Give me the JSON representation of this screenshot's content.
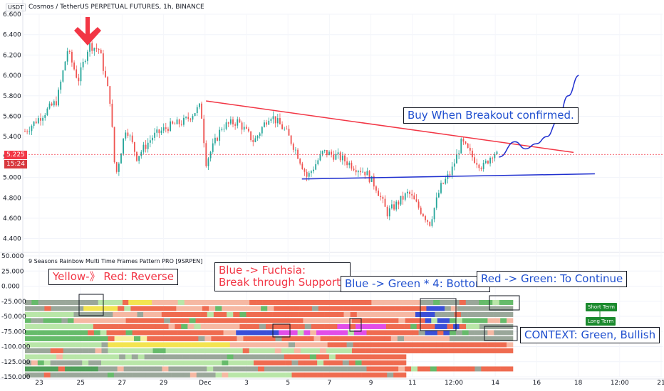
{
  "header": {
    "currency": "USDT",
    "title": "Cosmos / TetherUS PERPETUAL FUTURES, 1h, BINANCE"
  },
  "indicator_title": "9 Seasons Rainbow Multi Time Frames Pattern PRO [9SRPEN]",
  "last_price": "5.225",
  "countdown": "15:24",
  "notes": {
    "reverse": "Yellow-》 Red:   Reverse",
    "break": "Blue -> Fuchsia:\nBreak through Supports",
    "bottom": "Blue -> Green * 4: Bottom",
    "continue": "Red -> Green: To Continue",
    "buy": "Buy When Breakout confirmed.",
    "context": "CONTEXT: Green, Bullish"
  },
  "badges": {
    "short": "Short Term",
    "long": "Long Term"
  },
  "colors": {
    "up": "#26a69a",
    "down": "#ef5350",
    "resistance": "#f23645",
    "support": "#1f2fcf",
    "projection": "#1f2fcf",
    "arrow": "#f23645"
  },
  "chart_data": [
    {
      "type": "candlestick",
      "title": "Cosmos / TetherUS PERPETUAL FUTURES, 1h, BINANCE",
      "ylim": [
        4.3,
        6.6
      ],
      "y_ticks": [
        "6.600",
        "6.400",
        "6.200",
        "6.000",
        "5.800",
        "5.600",
        "5.400",
        "5.200",
        "5.000",
        "4.800",
        "4.600",
        "4.400"
      ],
      "x_ticks": [
        "23",
        "25",
        "27",
        "29",
        "Dec",
        "3",
        "5",
        "7",
        "9",
        "11",
        "12:00",
        "14",
        "16",
        "18",
        "12:00",
        "21"
      ],
      "price_path": [
        [
          0,
          5.45
        ],
        [
          3,
          5.6
        ],
        [
          6,
          5.75
        ],
        [
          8,
          6.25
        ],
        [
          10,
          5.95
        ],
        [
          12,
          6.3
        ],
        [
          14,
          6.25
        ],
        [
          16,
          5.75
        ],
        [
          17,
          5.0
        ],
        [
          19,
          5.5
        ],
        [
          21,
          5.2
        ],
        [
          24,
          5.4
        ],
        [
          27,
          5.5
        ],
        [
          30,
          5.55
        ],
        [
          33,
          5.7
        ],
        [
          34,
          5.15
        ],
        [
          37,
          5.5
        ],
        [
          40,
          5.55
        ],
        [
          43,
          5.35
        ],
        [
          46,
          5.62
        ],
        [
          49,
          5.45
        ],
        [
          51,
          5.25
        ],
        [
          53,
          5.0
        ],
        [
          56,
          5.25
        ],
        [
          59,
          5.2
        ],
        [
          62,
          5.1
        ],
        [
          64,
          5.05
        ],
        [
          66,
          4.9
        ],
        [
          68,
          4.65
        ],
        [
          70,
          4.75
        ],
        [
          72,
          4.85
        ],
        [
          74,
          4.7
        ],
        [
          76,
          4.55
        ],
        [
          78,
          4.9
        ],
        [
          80,
          5.05
        ],
        [
          82,
          5.35
        ],
        [
          84,
          5.2
        ],
        [
          86,
          5.1
        ],
        [
          88,
          5.25
        ],
        [
          89,
          5.2
        ]
      ],
      "resistance_line": {
        "x": [
          34,
          103
        ],
        "y": [
          5.75,
          5.245
        ]
      },
      "support_line": {
        "x": [
          52,
          107
        ],
        "y": [
          4.985,
          5.035
        ]
      },
      "projection_path": [
        [
          89,
          5.2
        ],
        [
          92,
          5.35
        ],
        [
          94,
          5.28
        ],
        [
          96,
          5.33
        ],
        [
          98,
          5.4
        ],
        [
          100,
          5.55
        ],
        [
          102,
          5.8
        ],
        [
          104,
          6.0
        ]
      ],
      "annotations": [
        "Buy When Breakout confirmed."
      ],
      "grid": true
    },
    {
      "type": "heatmap",
      "title": "9 Seasons Rainbow Multi Time Frames Pattern PRO [9SRPEN]",
      "ylim": [
        -150,
        50
      ],
      "y_ticks": [
        "50.000",
        "25.000",
        "0.000",
        "-25.000",
        "-50.000",
        "-75.000",
        "-100.000",
        "-125.000",
        "-150.000"
      ],
      "rows": 14,
      "legend": [
        "Short Term",
        "Long Term"
      ]
    }
  ]
}
